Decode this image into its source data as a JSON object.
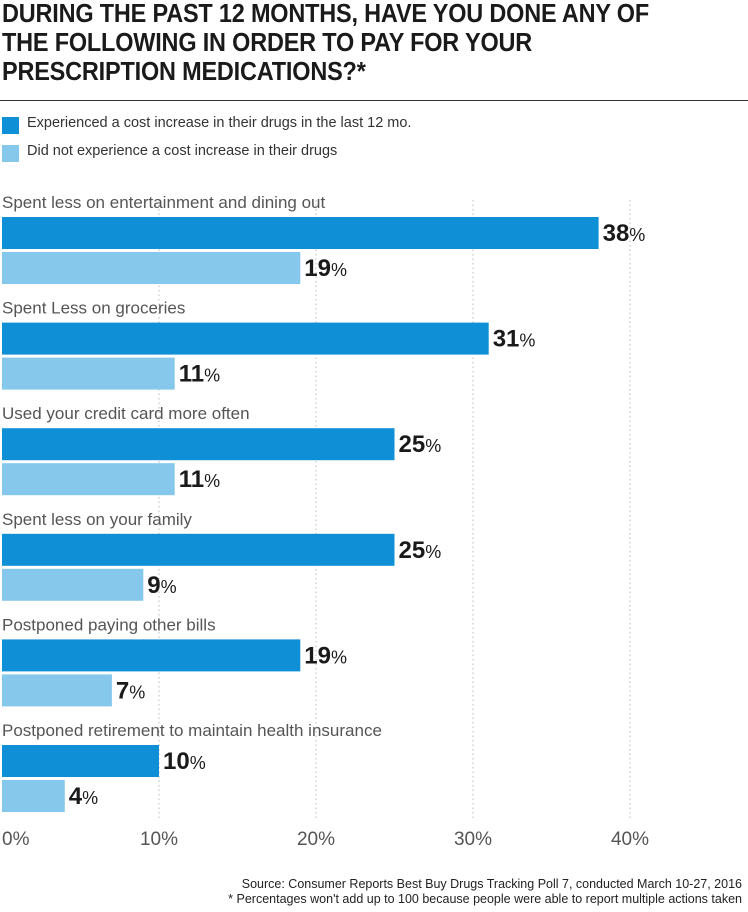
{
  "chart_data": {
    "type": "bar",
    "orientation": "horizontal",
    "title": "DURING THE PAST 12 MONTHS, HAVE YOU DONE ANY OF THE FOLLOWING IN ORDER TO PAY FOR YOUR PRESCRIPTION MEDICATIONS?*",
    "categories": [
      "Spent less on entertainment and dining out",
      "Spent Less on groceries",
      "Used your credit card more often",
      "Spent less on your family",
      "Postponed paying other bills",
      "Postponed retirement to maintain health insurance"
    ],
    "series": [
      {
        "name": "Experienced a cost increase in their drugs in the last 12 mo.",
        "color": "#0f8fd6",
        "values": [
          38,
          31,
          25,
          25,
          19,
          10
        ]
      },
      {
        "name": "Did not experience a cost increase in their drugs",
        "color": "#86c8ec",
        "values": [
          19,
          11,
          11,
          9,
          7,
          4
        ]
      }
    ],
    "value_suffix": "%",
    "xlim": [
      0,
      40
    ],
    "xticks": [
      {
        "value": 0,
        "label": "0%"
      },
      {
        "value": 10,
        "label": "10%"
      },
      {
        "value": 20,
        "label": "20%"
      },
      {
        "value": 30,
        "label": "30%"
      },
      {
        "value": 40,
        "label": "40%"
      }
    ],
    "grid": true,
    "legend_position": "top-left"
  },
  "footer": {
    "source": "Source: Consumer Reports Best Buy Drugs Tracking Poll 7, conducted March 10-27, 2016",
    "note": "* Percentages won't add up to 100 because people were able to report multiple actions taken"
  },
  "colors": {
    "text": "#1a1a1a",
    "category_label": "#555555",
    "grid": "#bbbbbb",
    "axis_label": "#555555"
  }
}
